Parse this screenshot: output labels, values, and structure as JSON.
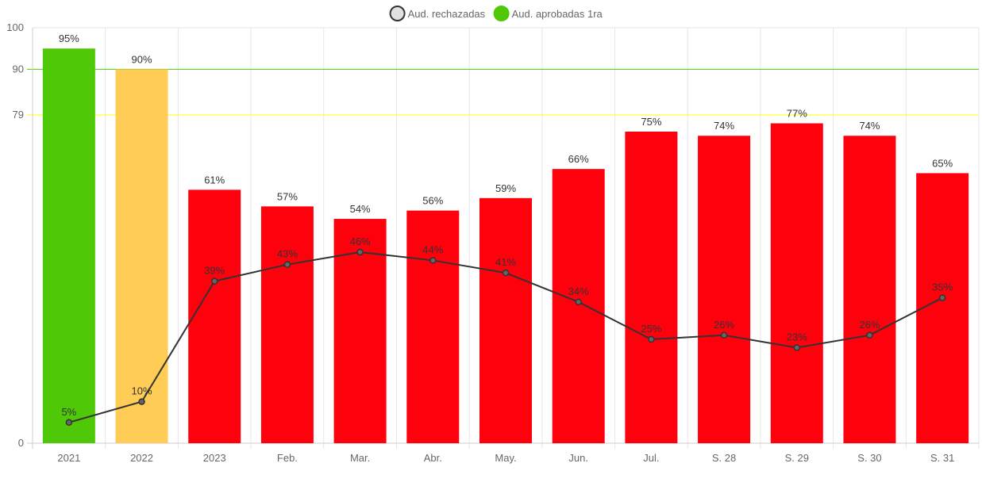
{
  "chart_data": {
    "type": "bar",
    "categories": [
      "2021",
      "2022",
      "2023",
      "Feb.",
      "Mar.",
      "Abr.",
      "May.",
      "Jun.",
      "Jul.",
      "S. 28",
      "S. 29",
      "S. 30",
      "S. 31"
    ],
    "series": [
      {
        "name": "Aud. aprobadas 1ra",
        "type": "bar",
        "values": [
          95,
          90,
          61,
          57,
          54,
          56,
          59,
          66,
          75,
          74,
          77,
          74,
          65
        ],
        "labels": [
          "95%",
          "90%",
          "61%",
          "57%",
          "54%",
          "56%",
          "59%",
          "66%",
          "75%",
          "74%",
          "77%",
          "74%",
          "65%"
        ],
        "colors": [
          "#4fc807",
          "#ffcc55",
          "#ff000d",
          "#ff000d",
          "#ff000d",
          "#ff000d",
          "#ff000d",
          "#ff000d",
          "#ff000d",
          "#ff000d",
          "#ff000d",
          "#ff000d",
          "#ff000d"
        ]
      },
      {
        "name": "Aud. rechazadas",
        "type": "line",
        "values": [
          5,
          10,
          39,
          43,
          46,
          44,
          41,
          34,
          25,
          26,
          23,
          26,
          35
        ],
        "labels": [
          "5%",
          "10%",
          "39%",
          "43%",
          "46%",
          "44%",
          "41%",
          "34%",
          "25%",
          "26%",
          "23%",
          "26%",
          "35%"
        ],
        "color": "#333333"
      }
    ],
    "y_ticks": [
      0,
      79,
      90,
      100
    ],
    "y_tick_labels": [
      "0",
      "79",
      "90",
      "100"
    ],
    "ylim": [
      0,
      100
    ],
    "reference_lines": [
      {
        "value": 90,
        "color": "#4fc807"
      },
      {
        "value": 79,
        "color": "#ffff00"
      }
    ],
    "legend": {
      "placement": "top-center",
      "items": [
        {
          "label": "Aud. rechazadas",
          "color": "#e0e0e0",
          "border": "#333333"
        },
        {
          "label": "Aud. aprobadas 1ra",
          "color": "#4fc807",
          "border": "#4fc807"
        }
      ]
    },
    "grid": true,
    "title": "",
    "xlabel": "",
    "ylabel": ""
  }
}
